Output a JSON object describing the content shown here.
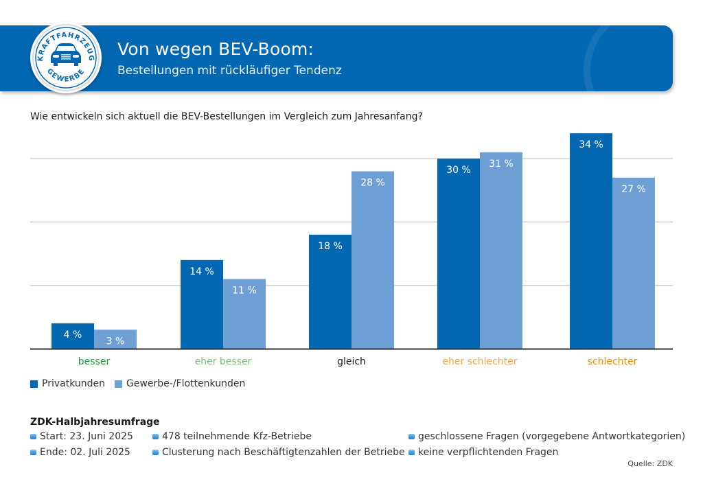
{
  "header": {
    "title": "Von wegen BEV-Boom:",
    "subtitle": "Bestellungen mit rückläufiger Tendenz",
    "logo": {
      "top_text": "KRAFTFAHRZEUG",
      "bottom_text": "GEWERBE",
      "icon": "car-icon"
    },
    "brand_color": "#0467b2"
  },
  "question": "Wie entwickeln sich aktuell die BEV-Bestellungen im Vergleich zum Jahresanfang?",
  "chart_data": {
    "type": "bar",
    "title": "Wie entwickeln sich aktuell die BEV-Bestellungen im Vergleich zum Jahresanfang?",
    "xlabel": "",
    "ylabel": "",
    "ylim": [
      0,
      37
    ],
    "grid": true,
    "gridlines": [
      10,
      20,
      30
    ],
    "categories": [
      "besser",
      "eher besser",
      "gleich",
      "eher schlechter",
      "schlechter"
    ],
    "category_colors": [
      "#1f9a3a",
      "#7cbf7c",
      "#1a1a1a",
      "#f5a64a",
      "#f08c00"
    ],
    "series": [
      {
        "name": "Privatkunden",
        "color": "#0467b2",
        "values": [
          4,
          14,
          18,
          30,
          34
        ]
      },
      {
        "name": "Gewerbe-/Flottenkunden",
        "color": "#6e9fd5",
        "values": [
          3,
          11,
          28,
          31,
          27
        ]
      }
    ],
    "value_suffix": " %",
    "legend_position": "bottom-left"
  },
  "legend": [
    {
      "label": "Privatkunden",
      "color": "#0467b2"
    },
    {
      "label": "Gewerbe-/Flottenkunden",
      "color": "#6e9fd5"
    }
  ],
  "survey": {
    "title": "ZDK-Halbjahresumfrage",
    "col1": [
      "Start: 23. Juni 2025",
      "Ende: 02. Juli 2025"
    ],
    "col2": [
      "478 teilnehmende Kfz-Betriebe",
      "Clusterung nach Beschäftigtenzahlen der Betriebe"
    ],
    "col3": [
      "geschlossene Fragen (vorgegebene Antwortkategorien)",
      "keine verpflichtenden Fragen"
    ]
  },
  "source": "Quelle: ZDK"
}
